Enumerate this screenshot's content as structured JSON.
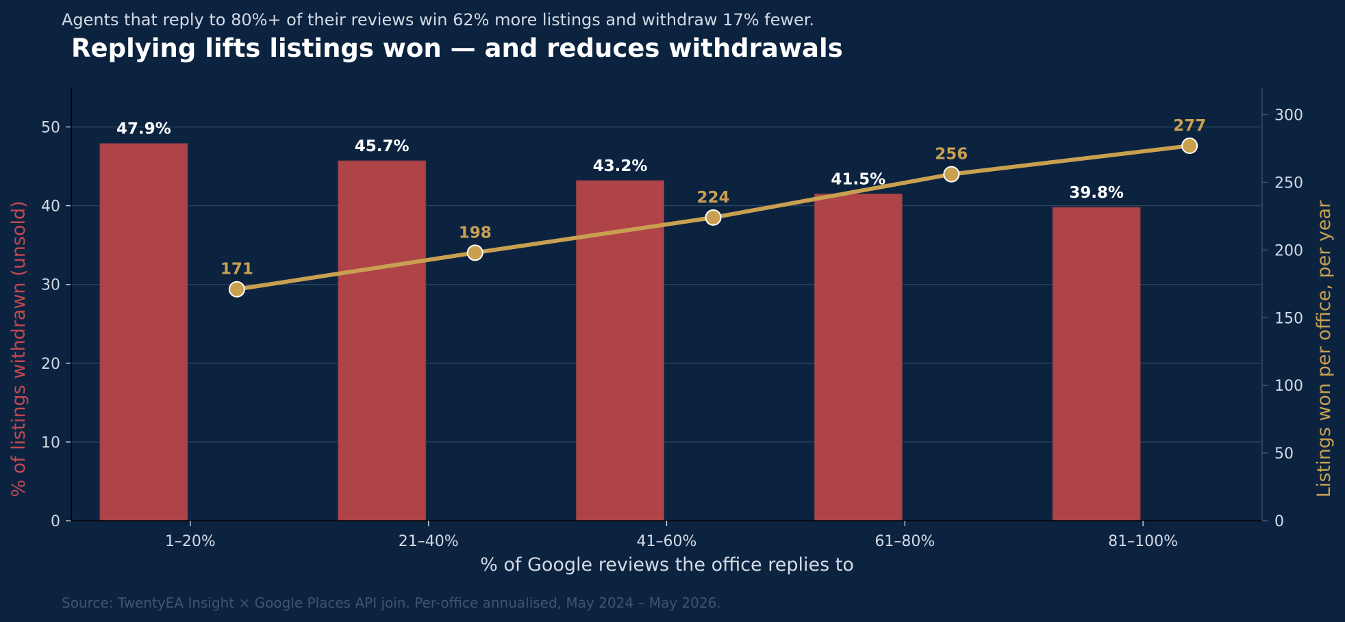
{
  "subtitle": "Agents that reply to 80%+ of their reviews win 62% more listings and withdraw 17% fewer.",
  "source": "Source: TwentyEA Insight × Google Places API join. Per-office annualised, May 2024 – May 2026.",
  "colors": {
    "background": "#0c2340",
    "bar": "#ae4348",
    "line": "#c9a050",
    "grid": "#2e4560",
    "text": "#d3dae4",
    "left_axis_label": "#c0494f",
    "right_axis_label": "#c9a050"
  },
  "chart_data": {
    "type": "bar",
    "title": "Replying lifts listings won — and reduces withdrawals",
    "xlabel": "% of Google reviews the office replies to",
    "ylabel": "% of listings withdrawn (unsold)",
    "y2label": "Listings won per office, per year",
    "categories": [
      "1–20%",
      "21–40%",
      "41–60%",
      "61–80%",
      "81–100%"
    ],
    "series": [
      {
        "type": "bar",
        "axis": "left",
        "values": [
          47.9,
          45.7,
          43.2,
          41.5,
          39.8
        ],
        "labels": [
          "47.9%",
          "45.7%",
          "43.2%",
          "41.5%",
          "39.8%"
        ]
      },
      {
        "type": "line",
        "axis": "right",
        "values": [
          171,
          198,
          224,
          256,
          277
        ],
        "labels": [
          "171",
          "198",
          "224",
          "256",
          "277"
        ]
      }
    ],
    "ylim": [
      0,
      55
    ],
    "y2lim": [
      0,
      320
    ],
    "yticks": [
      "0",
      "10",
      "20",
      "30",
      "40",
      "50"
    ],
    "y2ticks": [
      "0",
      "50",
      "100",
      "150",
      "200",
      "250",
      "300"
    ],
    "grid": true
  }
}
